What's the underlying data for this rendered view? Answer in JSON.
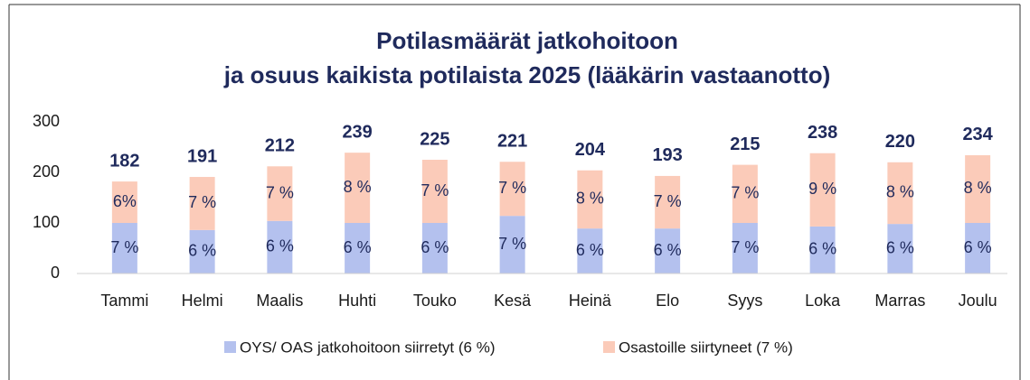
{
  "chart_data": {
    "type": "stacked_bar",
    "title": [
      "Potilasmäärät jatkohoitoon",
      "ja osuus kaikista potilaista 2025 (lääkärin vastaanotto)"
    ],
    "categories": [
      "Tammi",
      "Helmi",
      "Maalis",
      "Huhti",
      "Touko",
      "Kesä",
      "Heinä",
      "Elo",
      "Syys",
      "Loka",
      "Marras",
      "Joulu"
    ],
    "series": [
      {
        "name": "OYS/ OAS jatkohoitoon siirretyt (6 %)",
        "color": "#b4c1ee",
        "values": [
          100,
          86,
          104,
          100,
          100,
          114,
          89,
          89,
          100,
          93,
          98,
          100
        ],
        "segment_labels": [
          "7 %",
          "6 %",
          "6 %",
          "6 %",
          "6 %",
          "7 %",
          "6 %",
          "6 %",
          "7 %",
          "6 %",
          "6 %",
          "6 %"
        ]
      },
      {
        "name": "Osastoille siirtyneet (7 %)",
        "color": "#fbcbb9",
        "values": [
          82,
          105,
          108,
          139,
          125,
          107,
          115,
          104,
          115,
          145,
          122,
          134
        ],
        "segment_labels": [
          "6%",
          "7 %",
          "7 %",
          "8 %",
          "7 %",
          "7 %",
          "8 %",
          "7 %",
          "7 %",
          "9 %",
          "8 %",
          "8 %"
        ]
      }
    ],
    "totals": [
      182,
      191,
      212,
      239,
      225,
      221,
      204,
      193,
      215,
      238,
      220,
      234
    ],
    "ylim": [
      0,
      300
    ],
    "yticks": [
      0,
      100,
      200,
      300
    ],
    "grid": false,
    "legend": "bottom"
  }
}
